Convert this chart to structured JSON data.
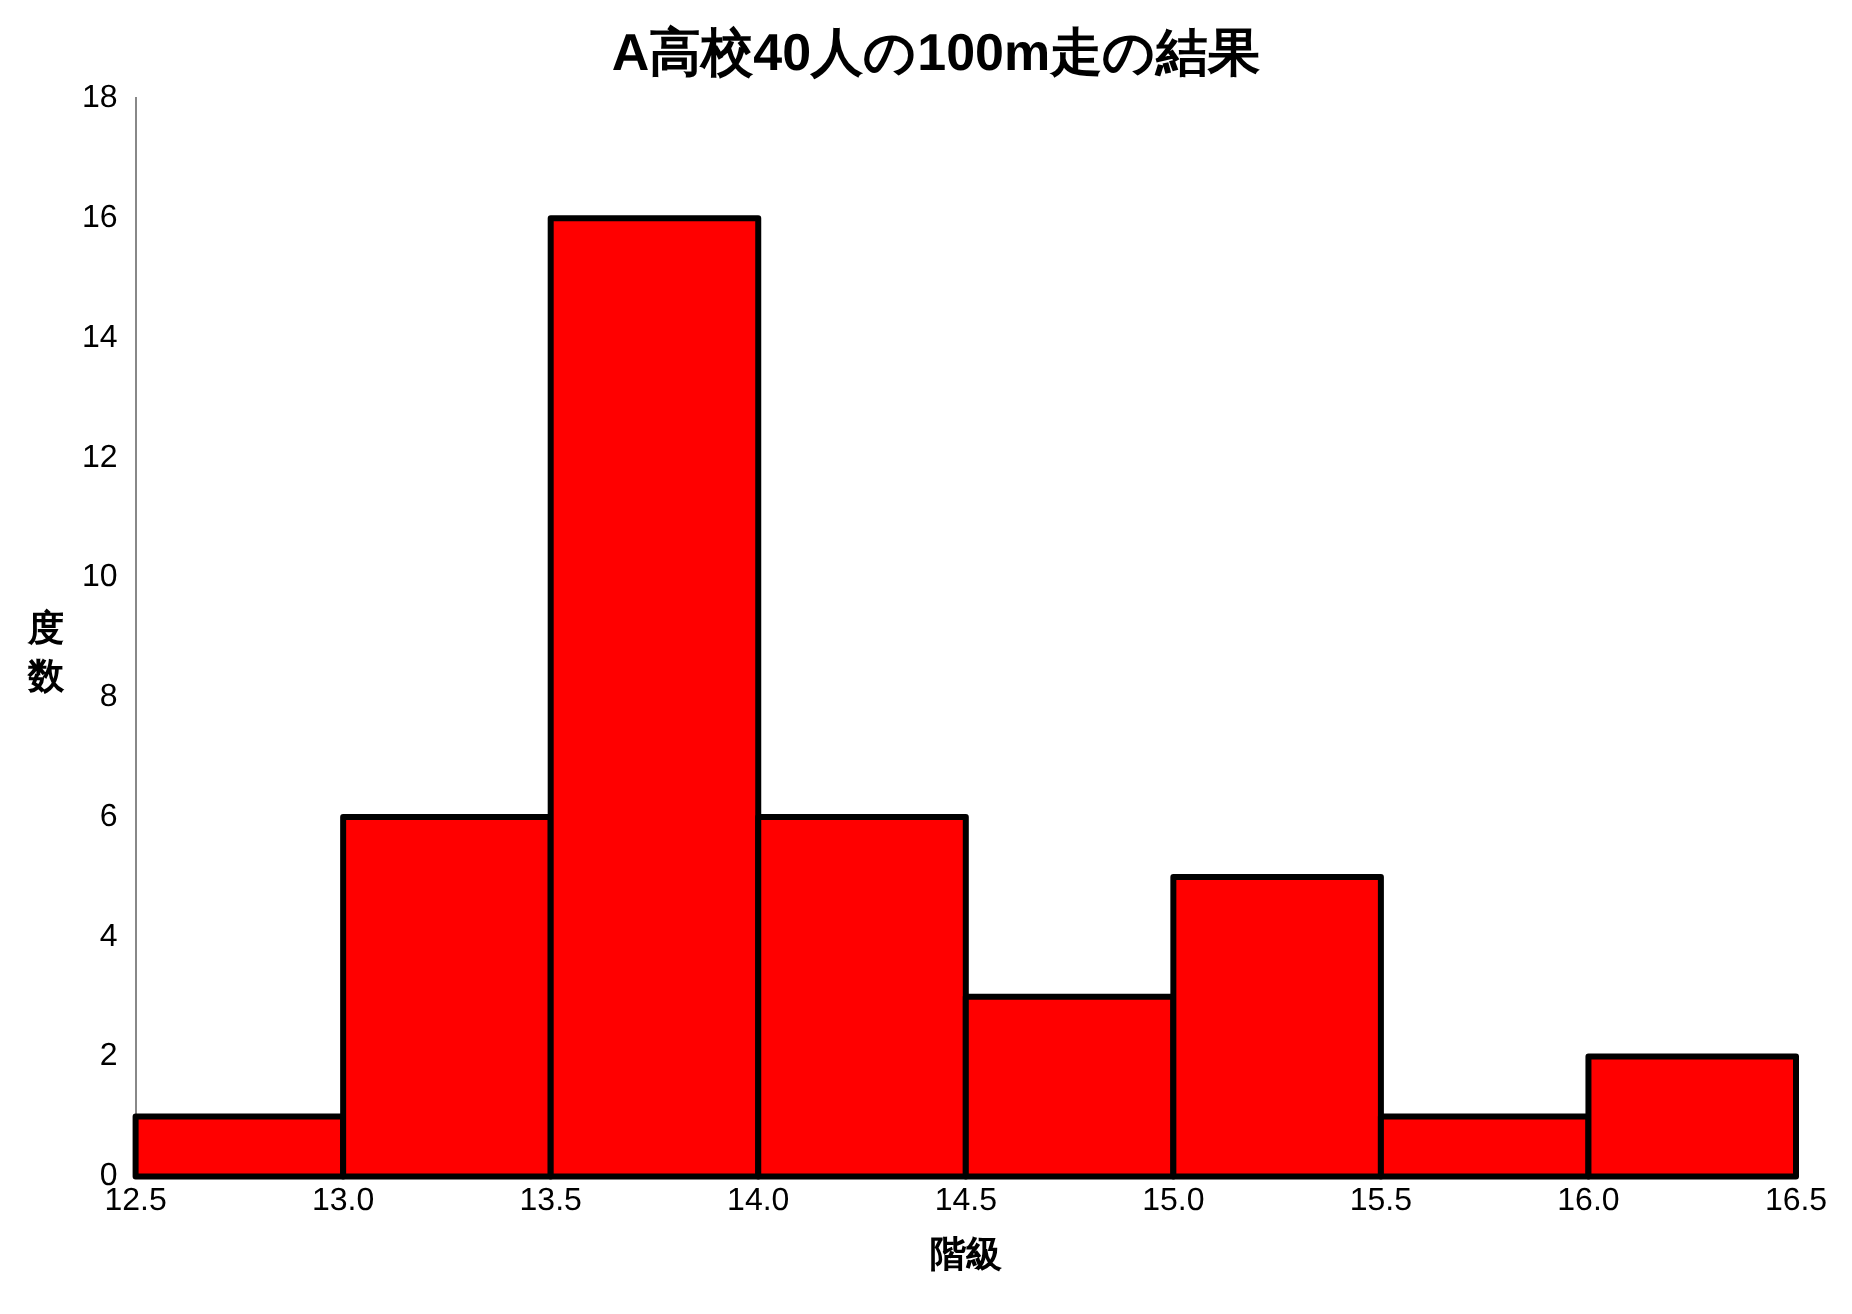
{
  "chart_data": {
    "type": "histogram",
    "title": "A高校40人の100m走の結果",
    "xlabel": "階級",
    "ylabel": "度数",
    "bins": [
      12.5,
      13.0,
      13.5,
      14.0,
      14.5,
      15.0,
      15.5,
      16.0,
      16.5
    ],
    "values": [
      1,
      6,
      16,
      6,
      3,
      5,
      1,
      2
    ],
    "color": "#ff0000",
    "xlim": [
      12.5,
      16.5
    ],
    "xticks": [
      {
        "value": 12.5,
        "label": "12.5"
      },
      {
        "value": 13,
        "label": "13.0"
      },
      {
        "value": 13.5,
        "label": "13.5"
      },
      {
        "value": 14,
        "label": "14.0"
      },
      {
        "value": 14.5,
        "label": "14.5"
      },
      {
        "value": 15,
        "label": "15.0"
      },
      {
        "value": 15.5,
        "label": "15.5"
      },
      {
        "value": 16,
        "label": "16.0"
      },
      {
        "value": 16.5,
        "label": "16.5"
      }
    ],
    "ylim": [
      0,
      18
    ],
    "yticks": [
      0,
      2,
      4,
      6,
      8,
      10,
      12,
      14,
      16,
      18
    ],
    "grid": false,
    "legend": false
  }
}
